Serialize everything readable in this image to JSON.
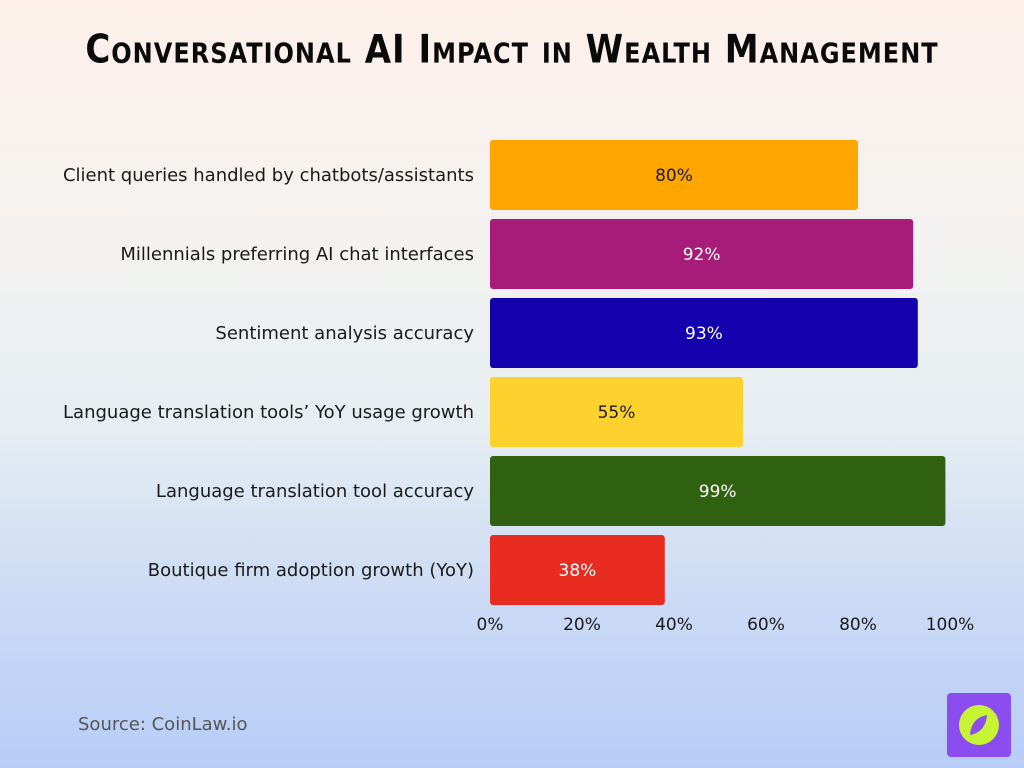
{
  "page": {
    "title": "Conversational AI Impact in Wealth Management",
    "source": "Source: CoinLaw.io"
  },
  "logo": {
    "icon": "compass-leaf-icon",
    "bg": "#8b4cf0",
    "circle": "#c6f432"
  },
  "chart_data": {
    "type": "bar",
    "orientation": "horizontal",
    "title": "Conversational AI Impact in Wealth Management",
    "categories": [
      "Client queries handled by chatbots/assistants",
      "Millennials preferring AI chat interfaces",
      "Sentiment analysis accuracy",
      "Language translation tools’ YoY usage growth",
      "Language translation tool accuracy",
      "Boutique firm adoption growth (YoY)"
    ],
    "values": [
      80,
      92,
      93,
      55,
      99,
      38
    ],
    "value_labels": [
      "80%",
      "92%",
      "93%",
      "55%",
      "99%",
      "38%"
    ],
    "colors": [
      "#ffa500",
      "#a61c78",
      "#1500ae",
      "#fdd22e",
      "#2f6110",
      "#e92c22"
    ],
    "label_colors": [
      "#1a1a1a",
      "#ffffff",
      "#ffffff",
      "#1a1a1a",
      "#ffffff",
      "#ffffff"
    ],
    "xlim": [
      0,
      100
    ],
    "xticks": [
      0,
      20,
      40,
      60,
      80,
      100
    ],
    "xtick_labels": [
      "0%",
      "20%",
      "40%",
      "60%",
      "80%",
      "100%"
    ],
    "xlabel": "",
    "ylabel": "",
    "grid": false,
    "legend": "none"
  }
}
